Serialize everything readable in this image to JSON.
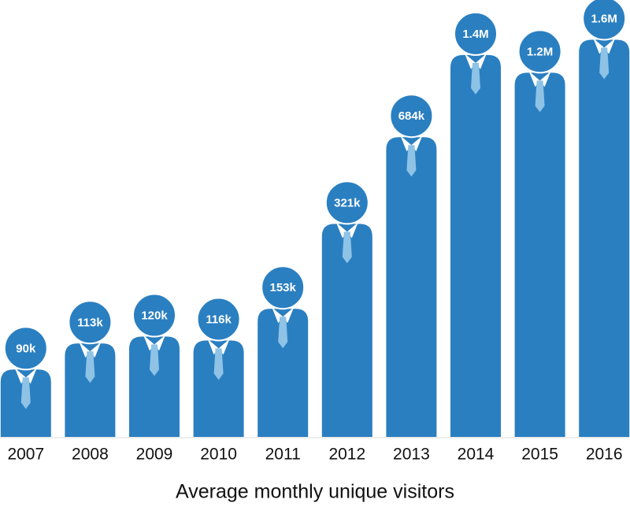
{
  "chart_data": {
    "type": "bar",
    "title": "Average monthly unique visitors",
    "categories": [
      "2007",
      "2008",
      "2009",
      "2010",
      "2011",
      "2012",
      "2013",
      "2014",
      "2015",
      "2016"
    ],
    "values": [
      90000,
      113000,
      120000,
      116000,
      153000,
      321000,
      684000,
      1400000,
      1200000,
      1600000
    ],
    "value_labels": [
      "90k",
      "113k",
      "120k",
      "116k",
      "153k",
      "321k",
      "684k",
      "1.4M",
      "1.2M",
      "1.6M"
    ],
    "color": "#2a7fc1",
    "log_scale": true,
    "ylim": [
      50000,
      2000000
    ]
  }
}
